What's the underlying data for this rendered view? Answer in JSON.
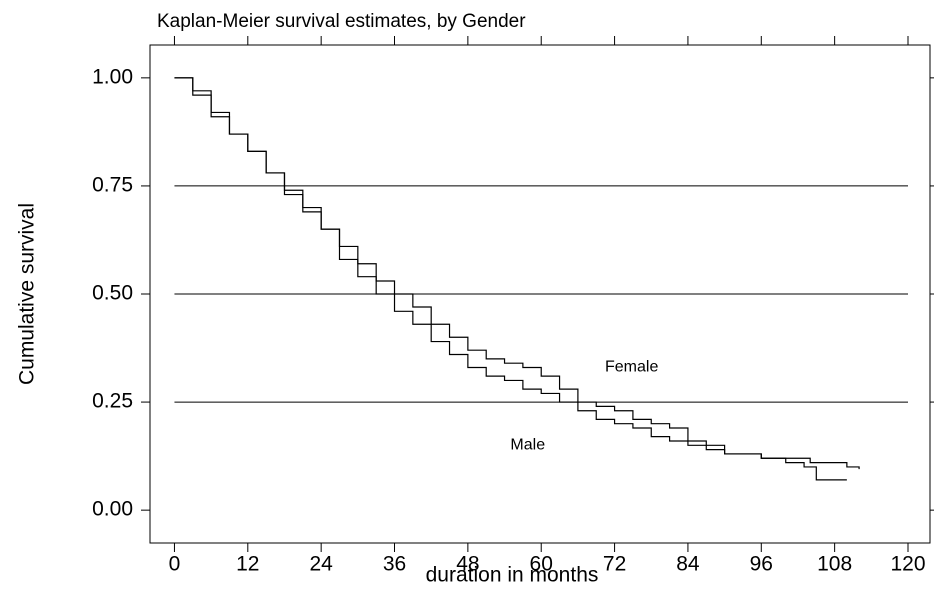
{
  "chart_data": {
    "type": "step",
    "title": "Kaplan-Meier survival estimates, by Gender",
    "x_label": "duration in months",
    "y_label": "Cumulative survival",
    "xlim": [
      -4,
      123.6
    ],
    "ylim": [
      -0.076,
      1.076
    ],
    "xticks": [
      0,
      12,
      24,
      36,
      48,
      60,
      72,
      84,
      96,
      108,
      120
    ],
    "yticks": [
      {
        "value": 0,
        "label": "0.00"
      },
      0.25,
      {
        "value": 0.5,
        "label": "0.50"
      },
      0.75,
      {
        "value": 1,
        "label": "1.00"
      }
    ],
    "grid": true,
    "series": [
      {
        "color": "#000000",
        "x": [
          0,
          3,
          6,
          9,
          12,
          15,
          18,
          21,
          24,
          27,
          30,
          33,
          36,
          39,
          42,
          45,
          48,
          51,
          54,
          57,
          60,
          63,
          66,
          69,
          72,
          75,
          78,
          81,
          84,
          87,
          90,
          93,
          96,
          100,
          104,
          108,
          110,
          112
        ],
        "values": [
          1.0,
          0.97,
          0.92,
          0.87,
          0.83,
          0.78,
          0.73,
          0.69,
          0.65,
          0.61,
          0.57,
          0.53,
          0.5,
          0.47,
          0.43,
          0.4,
          0.37,
          0.35,
          0.34,
          0.33,
          0.31,
          0.28,
          0.25,
          0.24,
          0.23,
          0.21,
          0.2,
          0.19,
          0.16,
          0.15,
          0.13,
          0.13,
          0.12,
          0.12,
          0.11,
          0.11,
          0.1,
          0.095
        ]
      },
      {
        "color": "#000000",
        "x": [
          0,
          3,
          6,
          9,
          12,
          15,
          18,
          21,
          24,
          27,
          30,
          33,
          36,
          39,
          42,
          45,
          48,
          51,
          54,
          57,
          60,
          63,
          66,
          69,
          72,
          75,
          78,
          81,
          84,
          87,
          90,
          93,
          96,
          100,
          103,
          105,
          110
        ],
        "values": [
          1.0,
          0.96,
          0.91,
          0.87,
          0.83,
          0.78,
          0.74,
          0.7,
          0.65,
          0.58,
          0.54,
          0.5,
          0.46,
          0.43,
          0.39,
          0.36,
          0.33,
          0.31,
          0.3,
          0.28,
          0.27,
          0.25,
          0.23,
          0.21,
          0.2,
          0.19,
          0.17,
          0.16,
          0.15,
          0.14,
          0.13,
          0.13,
          0.12,
          0.11,
          0.1,
          0.07,
          0.07
        ]
      }
    ],
    "annotations": [
      {
        "text": "Female",
        "x": 74.8,
        "y": 0.331
      },
      {
        "text": "Male",
        "x": 57.8,
        "y": 0.15
      }
    ]
  }
}
